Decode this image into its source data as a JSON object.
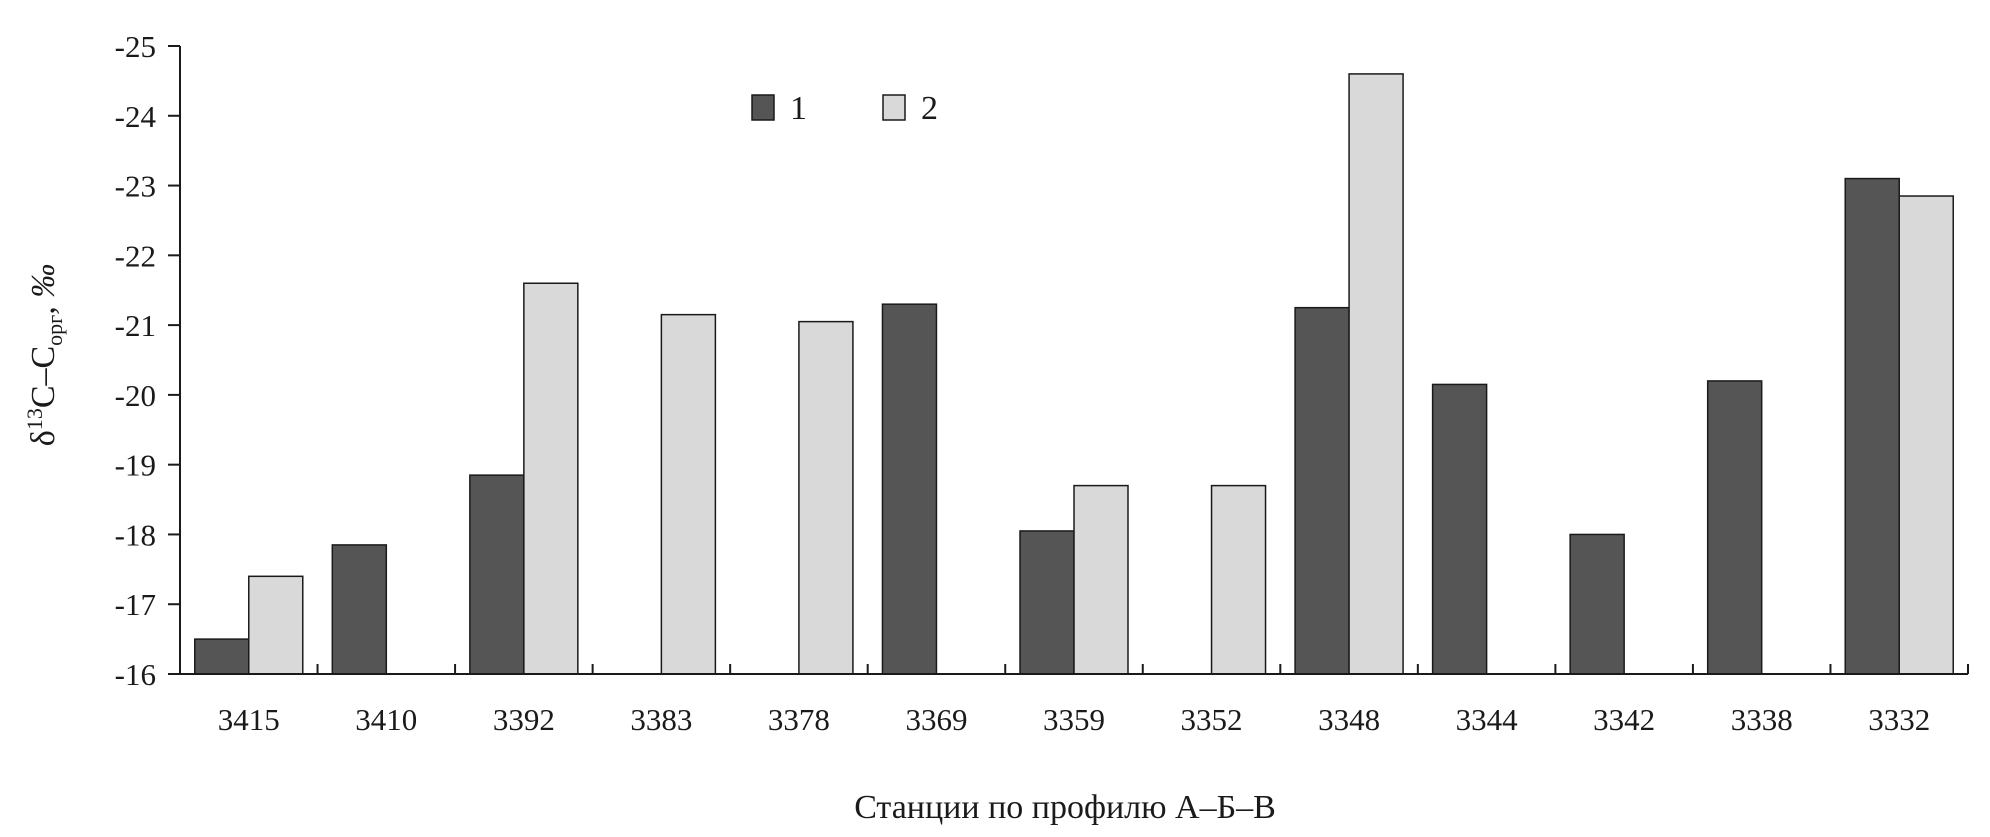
{
  "chart_data": {
    "type": "bar",
    "categories": [
      "3415",
      "3410",
      "3392",
      "3383",
      "3378",
      "3369",
      "3359",
      "3352",
      "3348",
      "3344",
      "3342",
      "3338",
      "3332"
    ],
    "series": [
      {
        "name": "1",
        "color": "#555555",
        "values": [
          -16.5,
          -17.85,
          -18.85,
          null,
          null,
          -21.3,
          -18.05,
          null,
          -21.25,
          -20.15,
          -18.0,
          -20.2,
          -23.1
        ]
      },
      {
        "name": "2",
        "color": "#d9d9d9",
        "values": [
          -17.4,
          null,
          -21.6,
          -21.15,
          -21.05,
          null,
          -18.7,
          -18.7,
          -24.6,
          null,
          null,
          null,
          -22.85
        ]
      }
    ],
    "xlabel": "Станции по профилю А–Б–В",
    "ylabel_parts": {
      "prefix": "δ",
      "sup": "13",
      "mid": "C–C",
      "sub": "орг",
      "suffix": ", ‰"
    },
    "ylim": [
      -16,
      -25
    ],
    "yticks": [
      -16,
      -17,
      -18,
      -19,
      -20,
      -21,
      -22,
      -23,
      -24,
      -25
    ],
    "ytick_labels": [
      "-16",
      "-17",
      "-18",
      "-19",
      "-20",
      "-21",
      "-22",
      "-23",
      "-24",
      "-25"
    ],
    "inverted_y": true,
    "grid": false,
    "legend_position": "top-center"
  }
}
